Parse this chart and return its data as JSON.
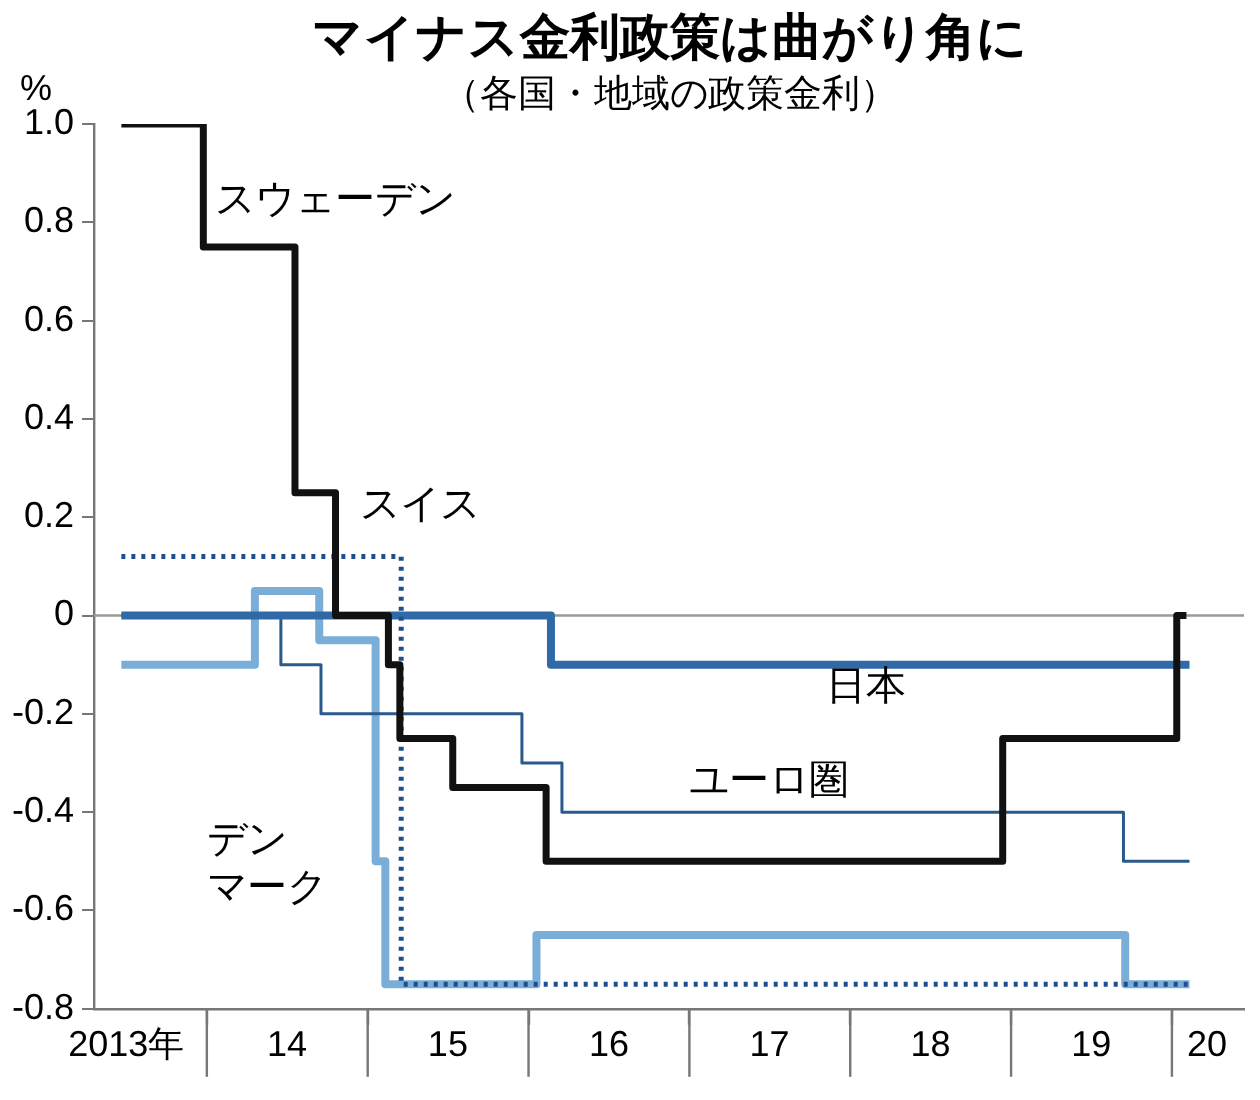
{
  "chart_data": {
    "type": "step",
    "title": "マイナス金利政策は曲がり角に",
    "subtitle": "（各国・地域の政策金利）",
    "ylabel": "%",
    "xlim": [
      "2013-04-20",
      "2020-06-13"
    ],
    "xticks": [
      {
        "value": "2013-07-02",
        "label": "2013年"
      },
      {
        "value": "2014-01-01",
        "label": null
      },
      {
        "value": "2014-07-02",
        "label": "14"
      },
      {
        "value": "2015-01-01",
        "label": null
      },
      {
        "value": "2015-07-02",
        "label": "15"
      },
      {
        "value": "2016-01-01",
        "label": null
      },
      {
        "value": "2016-07-02",
        "label": "16"
      },
      {
        "value": "2017-01-01",
        "label": null
      },
      {
        "value": "2017-07-02",
        "label": "17"
      },
      {
        "value": "2018-01-01",
        "label": null
      },
      {
        "value": "2018-07-02",
        "label": "18"
      },
      {
        "value": "2019-01-01",
        "label": null
      },
      {
        "value": "2019-07-02",
        "label": "19"
      },
      {
        "value": "2020-01-01",
        "label": null
      },
      {
        "value": "2020-03-21",
        "label": "20"
      }
    ],
    "ylim": [
      -0.8,
      1.0
    ],
    "yticks": [
      -0.8,
      -0.6,
      -0.4,
      -0.2,
      0,
      0.2,
      0.4,
      0.6,
      0.8,
      {
        "value": 1.0,
        "label": "1.0"
      }
    ],
    "ref_lines": [
      {
        "axis": "y",
        "value": 0,
        "label": null,
        "color": "#999999"
      }
    ],
    "legend": false,
    "marker": "none",
    "series": [
      {
        "name": "スウェーデン",
        "color": "#111111",
        "line_style": "solid",
        "x": [
          "2013-06-21",
          "2013-12-24",
          "2014-07-20",
          "2014-10-20",
          "2015-02-17",
          "2015-03-15",
          "2015-07-13",
          "2016-02-10",
          "2018-12-13",
          "2020-01-12",
          "2020-02-03"
        ],
        "values": [
          1.0,
          0.75,
          0.25,
          0,
          -0.1,
          -0.25,
          -0.35,
          -0.5,
          -0.25,
          0,
          0
        ]
      },
      {
        "name": "スイス",
        "color": "#1f4e8c",
        "line_style": "dotted",
        "x": [
          "2013-06-21",
          "2015-03-18",
          "2020-02-10"
        ],
        "values": [
          0.12,
          -0.75,
          -0.75
        ]
      },
      {
        "name": "日本",
        "color": "#2f6aa6",
        "line_style": "solid",
        "x": [
          "2013-06-21",
          "2016-02-21",
          "2020-02-10"
        ],
        "values": [
          0,
          -0.1,
          -0.1
        ]
      },
      {
        "name": "ユーロ圏",
        "color": "#2a5a8c",
        "line_style": "solid",
        "x": [
          "2013-06-21",
          "2014-06-18",
          "2014-09-17",
          "2015-12-17",
          "2016-03-17",
          "2019-09-13",
          "2020-02-10"
        ],
        "values": [
          0,
          -0.1,
          -0.2,
          -0.3,
          -0.4,
          -0.5,
          -0.5
        ]
      },
      {
        "name": "デンマーク",
        "color": "#7aaed8",
        "line_style": "solid",
        "x": [
          "2013-06-21",
          "2014-04-20",
          "2014-09-13",
          "2015-01-19",
          "2015-02-10",
          "2016-01-19",
          "2019-09-17",
          "2020-02-10"
        ],
        "values": [
          -0.1,
          0.05,
          -0.05,
          -0.5,
          -0.75,
          -0.65,
          -0.75,
          -0.75
        ]
      }
    ]
  }
}
